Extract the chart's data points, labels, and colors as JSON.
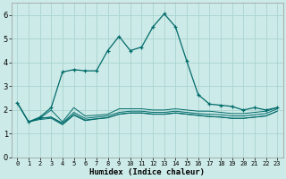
{
  "xlabel": "Humidex (Indice chaleur)",
  "bg_color": "#cceae7",
  "grid_color": "#aad4d0",
  "line_color": "#006b6b",
  "xlim": [
    -0.5,
    23.5
  ],
  "ylim": [
    0.0,
    6.5
  ],
  "xticks": [
    0,
    1,
    2,
    3,
    4,
    5,
    6,
    7,
    8,
    9,
    10,
    11,
    12,
    13,
    14,
    15,
    16,
    17,
    18,
    19,
    20,
    21,
    22,
    23
  ],
  "yticks": [
    0,
    1,
    2,
    3,
    4,
    5,
    6
  ],
  "main_x": [
    0,
    1,
    2,
    3,
    4,
    5,
    6,
    7,
    8,
    9,
    10,
    11,
    12,
    13,
    14,
    15,
    16,
    17,
    18,
    19,
    20,
    21,
    22,
    23
  ],
  "main_y": [
    2.3,
    1.5,
    1.7,
    2.1,
    3.6,
    3.7,
    3.65,
    3.65,
    4.5,
    5.1,
    4.5,
    4.65,
    5.5,
    6.05,
    5.5,
    4.05,
    2.65,
    2.25,
    2.2,
    2.15,
    2.0,
    2.1,
    2.0,
    2.1
  ],
  "line2_x": [
    0,
    1,
    2,
    3,
    4,
    5,
    6,
    7,
    8,
    9,
    10,
    11,
    12,
    13,
    14,
    15,
    16,
    17,
    18,
    19,
    20,
    21,
    22,
    23
  ],
  "line2_y": [
    2.3,
    1.5,
    1.65,
    1.7,
    1.45,
    1.9,
    1.65,
    1.7,
    1.75,
    1.9,
    1.95,
    1.95,
    1.9,
    1.9,
    1.95,
    1.9,
    1.85,
    1.82,
    1.8,
    1.75,
    1.75,
    1.8,
    1.85,
    2.05
  ],
  "line3_x": [
    0,
    1,
    2,
    3,
    4,
    5,
    6,
    7,
    8,
    9,
    10,
    11,
    12,
    13,
    14,
    15,
    16,
    17,
    18,
    19,
    20,
    21,
    22,
    23
  ],
  "line3_y": [
    2.3,
    1.5,
    1.6,
    1.65,
    1.38,
    1.78,
    1.55,
    1.62,
    1.67,
    1.82,
    1.87,
    1.87,
    1.82,
    1.82,
    1.87,
    1.82,
    1.77,
    1.72,
    1.7,
    1.65,
    1.65,
    1.7,
    1.75,
    1.95
  ],
  "line4_x": [
    1,
    2,
    3,
    4,
    5,
    6,
    7,
    8,
    9,
    10,
    11,
    12,
    13,
    14,
    15,
    16,
    17,
    18,
    19,
    20,
    21,
    22,
    23
  ],
  "line4_y": [
    1.5,
    1.65,
    1.7,
    1.42,
    1.82,
    1.58,
    1.63,
    1.68,
    1.83,
    1.88,
    1.88,
    1.83,
    1.83,
    1.88,
    1.83,
    1.78,
    1.73,
    1.7,
    1.65,
    1.65,
    1.7,
    1.75,
    1.95
  ],
  "line5_x": [
    2,
    3,
    4,
    5,
    6,
    7,
    8,
    9,
    10,
    11,
    12,
    13,
    14,
    15,
    16,
    17,
    18,
    19,
    20,
    21,
    22,
    23
  ],
  "line5_y": [
    1.65,
    2.0,
    1.5,
    2.1,
    1.75,
    1.78,
    1.82,
    2.05,
    2.05,
    2.05,
    2.0,
    2.0,
    2.05,
    2.0,
    1.95,
    1.95,
    1.9,
    1.85,
    1.85,
    1.9,
    1.95,
    2.1
  ]
}
